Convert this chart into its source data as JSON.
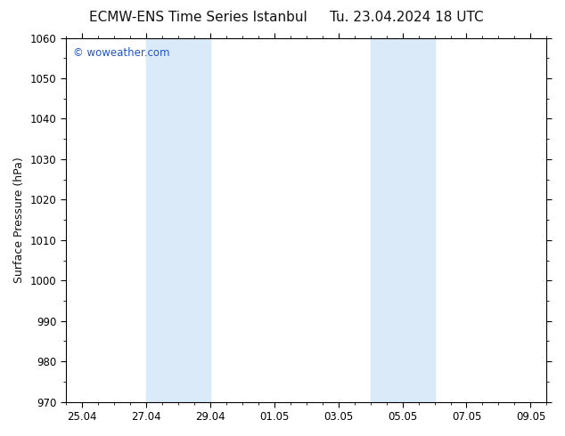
{
  "title_left": "ECMW-ENS Time Series Istanbul",
  "title_right": "Tu. 23.04.2024 18 UTC",
  "ylabel": "Surface Pressure (hPa)",
  "ylim": [
    970,
    1060
  ],
  "yticks": [
    970,
    980,
    990,
    1000,
    1010,
    1020,
    1030,
    1040,
    1050,
    1060
  ],
  "xtick_labels": [
    "25.04",
    "27.04",
    "29.04",
    "01.05",
    "03.05",
    "05.05",
    "07.05",
    "09.05"
  ],
  "xtick_positions": [
    0,
    2,
    4,
    6,
    8,
    10,
    12,
    14
  ],
  "xlim": [
    -0.5,
    14.5
  ],
  "shaded_bands": [
    {
      "x_start": 2.0,
      "x_end": 4.0
    },
    {
      "x_start": 9.0,
      "x_end": 11.0
    }
  ],
  "shade_color": "#daeaf8",
  "bg_color": "#ffffff",
  "plot_bg_color": "#ffffff",
  "spine_color": "#000000",
  "title_color": "#111111",
  "watermark_text": "© woweather.com",
  "watermark_color": "#2255cc",
  "title_fontsize": 11,
  "label_fontsize": 9,
  "tick_fontsize": 8.5
}
